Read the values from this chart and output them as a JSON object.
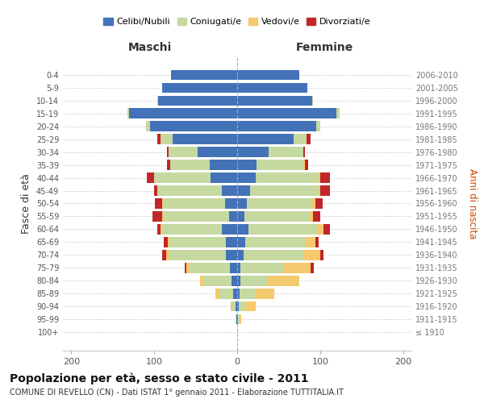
{
  "age_groups": [
    "0-4",
    "5-9",
    "10-14",
    "15-19",
    "20-24",
    "25-29",
    "30-34",
    "35-39",
    "40-44",
    "45-49",
    "50-54",
    "55-59",
    "60-64",
    "65-69",
    "70-74",
    "75-79",
    "80-84",
    "85-89",
    "90-94",
    "95-99",
    "100+"
  ],
  "birth_years": [
    "2006-2010",
    "2001-2005",
    "1996-2000",
    "1991-1995",
    "1986-1990",
    "1981-1985",
    "1976-1980",
    "1971-1975",
    "1966-1970",
    "1961-1965",
    "1956-1960",
    "1951-1955",
    "1946-1950",
    "1941-1945",
    "1936-1940",
    "1931-1935",
    "1926-1930",
    "1921-1925",
    "1916-1920",
    "1911-1915",
    "≤ 1910"
  ],
  "maschi": {
    "celibi": [
      80,
      90,
      95,
      130,
      105,
      78,
      48,
      33,
      32,
      18,
      15,
      10,
      18,
      14,
      14,
      9,
      7,
      5,
      2,
      1,
      0
    ],
    "coniugati": [
      0,
      0,
      1,
      2,
      5,
      14,
      35,
      48,
      68,
      78,
      73,
      78,
      72,
      68,
      68,
      48,
      33,
      16,
      4,
      1,
      0
    ],
    "vedovi": [
      0,
      0,
      0,
      0,
      0,
      0,
      0,
      0,
      0,
      0,
      2,
      2,
      2,
      2,
      4,
      4,
      5,
      5,
      2,
      0,
      0
    ],
    "divorziati": [
      0,
      0,
      0,
      0,
      0,
      4,
      2,
      4,
      9,
      4,
      9,
      12,
      4,
      4,
      4,
      2,
      0,
      0,
      0,
      0,
      0
    ]
  },
  "femmine": {
    "nubili": [
      75,
      85,
      90,
      120,
      95,
      68,
      38,
      23,
      22,
      16,
      12,
      9,
      14,
      10,
      8,
      4,
      4,
      3,
      2,
      1,
      0
    ],
    "coniugate": [
      0,
      0,
      1,
      3,
      5,
      16,
      42,
      57,
      76,
      82,
      78,
      78,
      82,
      72,
      72,
      52,
      33,
      18,
      8,
      2,
      0
    ],
    "vedove": [
      0,
      0,
      0,
      0,
      0,
      0,
      0,
      2,
      2,
      2,
      4,
      4,
      8,
      12,
      20,
      32,
      38,
      24,
      12,
      2,
      0
    ],
    "divorziate": [
      0,
      0,
      0,
      0,
      0,
      4,
      2,
      4,
      12,
      12,
      9,
      9,
      8,
      4,
      4,
      4,
      0,
      0,
      0,
      0,
      0
    ]
  },
  "color_celibi": "#4472b8",
  "color_coniugati": "#c5d9a0",
  "color_vedovi": "#f5c96e",
  "color_divorziati": "#c0262a",
  "xlim": 210,
  "title": "Popolazione per età, sesso e stato civile - 2011",
  "subtitle": "COMUNE DI REVELLO (CN) - Dati ISTAT 1° gennaio 2011 - Elaborazione TUTTITALIA.IT",
  "ylabel_left": "Fasce di età",
  "ylabel_right": "Anni di nascita",
  "xlabel_left": "Maschi",
  "xlabel_right": "Femmine"
}
